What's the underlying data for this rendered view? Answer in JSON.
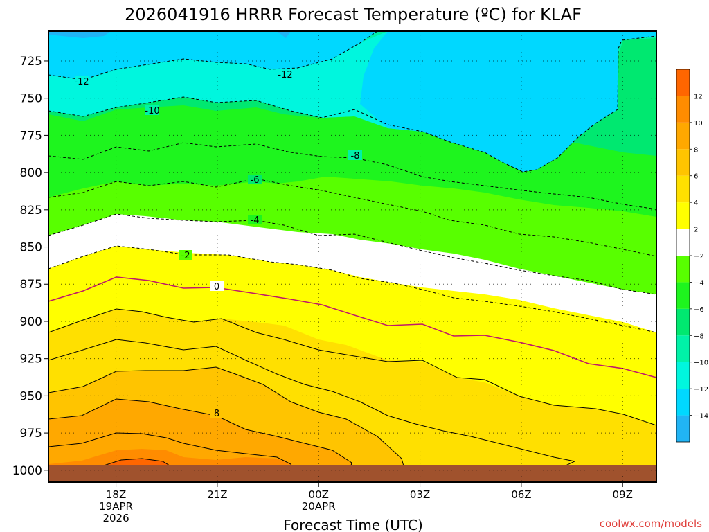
{
  "chart_data": {
    "type": "heatmap",
    "title": "2026041916 HRRR Forecast Temperature (ºC) for KLAF",
    "xlabel": "Forecast Time (UTC)",
    "ylabel": "",
    "credit": "coolwx.com/models",
    "x_range_hours": [
      16.0,
      10.0
    ],
    "y_range_hpa": [
      705,
      1008
    ],
    "y_ticks": [
      725,
      750,
      775,
      800,
      825,
      850,
      875,
      900,
      925,
      950,
      975,
      1000
    ],
    "x_ticks": [
      {
        "label": "18Z",
        "sub": [
          "19APR",
          "2026"
        ]
      },
      {
        "label": "21Z",
        "sub": []
      },
      {
        "label": "00Z",
        "sub": [
          "20APR"
        ]
      },
      {
        "label": "03Z",
        "sub": []
      },
      {
        "label": "06Z",
        "sub": []
      },
      {
        "label": "09Z",
        "sub": []
      }
    ],
    "colorbar": {
      "levels": [
        -16,
        -14,
        -12,
        -10,
        -8,
        -6,
        -4,
        -2,
        2,
        4,
        6,
        8,
        10,
        12,
        14
      ],
      "labels": [
        "-14",
        "-12",
        "-10",
        "-8",
        "-6",
        "-4",
        "-2",
        "2",
        "4",
        "6",
        "8",
        "10",
        "12"
      ],
      "colors": [
        "#21b4f5",
        "#00d8ff",
        "#00f6de",
        "#00f2a8",
        "#00e870",
        "#1ef51e",
        "#58ff00",
        "#ffffff",
        "#ffff00",
        "#ffe000",
        "#ffc400",
        "#ffa800",
        "#ff8c00",
        "#ff6600"
      ]
    },
    "contour_labels": [
      "-12",
      "-12",
      "-10",
      "-8",
      "-6",
      "-4",
      "-2",
      "0",
      "8"
    ],
    "ground_color": "#a0522d"
  }
}
